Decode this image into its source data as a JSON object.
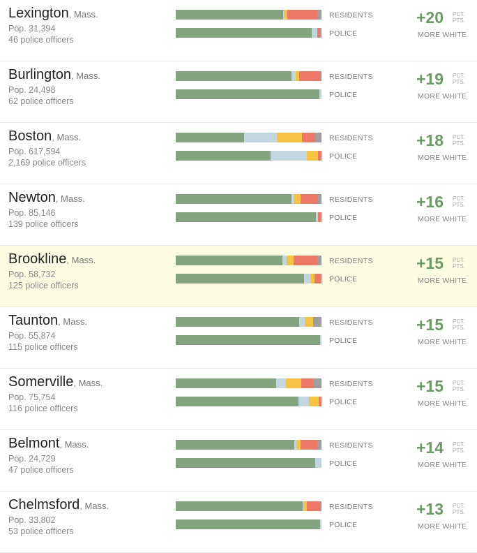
{
  "colors": {
    "white": "#83a47e",
    "asian": "#c2d6e0",
    "hispanic": "#f5c242",
    "black": "#ee7868",
    "other": "#9e9e9e",
    "highlight_bg": "#fdfde3",
    "accent": "#6a9a65"
  },
  "labels": {
    "residents": "RESIDENTS",
    "police": "POLICE",
    "unit_line1": "PCT.",
    "unit_line2": "PTS.",
    "more_white": "MORE WHITE"
  },
  "chart_data": {
    "type": "bar",
    "stacked": true,
    "orientation": "horizontal",
    "segment_order": [
      "white",
      "asian",
      "hispanic",
      "black",
      "other"
    ],
    "rows": [
      {
        "city": "Lexington",
        "state": ", Mass.",
        "pop": "Pop. 31,394",
        "officers": "46 police officers",
        "diff": "+20",
        "highlight": false,
        "residents": [
          73.5,
          0.8,
          2.4,
          20.3,
          3.0
        ],
        "police": [
          93.5,
          3.5,
          0,
          2.2,
          0.8
        ]
      },
      {
        "city": "Burlington",
        "state": ", Mass.",
        "pop": "Pop. 24,498",
        "officers": "62 police officers",
        "diff": "+19",
        "highlight": false,
        "residents": [
          79.5,
          3.0,
          2.0,
          14.8,
          0.7
        ],
        "police": [
          98.5,
          1.5,
          0,
          0,
          0
        ]
      },
      {
        "city": "Boston",
        "state": ", Mass.",
        "pop": "Pop. 617,594",
        "officers": "2,169 police officers",
        "diff": "+18",
        "highlight": false,
        "residents": [
          47.0,
          22.5,
          17.0,
          9.0,
          4.5
        ],
        "police": [
          65.0,
          25.0,
          7.5,
          2.5,
          0
        ]
      },
      {
        "city": "Newton",
        "state": ", Mass.",
        "pop": "Pop. 85,146",
        "officers": "139 police officers",
        "diff": "+16",
        "highlight": false,
        "residents": [
          79.5,
          2.0,
          4.0,
          12.0,
          2.5
        ],
        "police": [
          96.0,
          1.5,
          0,
          2.5,
          0
        ]
      },
      {
        "city": "Brookline",
        "state": ", Mass.",
        "pop": "Pop. 58,732",
        "officers": "125 police officers",
        "diff": "+15",
        "highlight": true,
        "residents": [
          73.0,
          3.0,
          5.0,
          16.0,
          3.0
        ],
        "police": [
          88.0,
          4.5,
          2.5,
          5.0,
          0
        ]
      },
      {
        "city": "Taunton",
        "state": ", Mass.",
        "pop": "Pop. 55,874",
        "officers": "115 police officers",
        "diff": "+15",
        "highlight": false,
        "residents": [
          84.5,
          4.0,
          6.0,
          0,
          5.5
        ],
        "police": [
          99.0,
          1.0,
          0,
          0,
          0
        ]
      },
      {
        "city": "Somerville",
        "state": ", Mass.",
        "pop": "Pop. 75,754",
        "officers": "116 police officers",
        "diff": "+15",
        "highlight": false,
        "residents": [
          69.0,
          6.5,
          10.5,
          8.5,
          5.5
        ],
        "police": [
          84.0,
          7.5,
          6.5,
          2.0,
          0
        ]
      },
      {
        "city": "Belmont",
        "state": ", Mass.",
        "pop": "Pop. 24,729",
        "officers": "47 police officers",
        "diff": "+14",
        "highlight": false,
        "residents": [
          81.5,
          1.5,
          2.5,
          11.5,
          3.0
        ],
        "police": [
          95.5,
          4.5,
          0,
          0,
          0
        ]
      },
      {
        "city": "Chelmsford",
        "state": ", Mass.",
        "pop": "Pop. 33,802",
        "officers": "53 police officers",
        "diff": "+13",
        "highlight": false,
        "residents": [
          87.0,
          0.5,
          2.5,
          9.0,
          1.0
        ],
        "police": [
          99.0,
          1.0,
          0,
          0,
          0
        ]
      }
    ]
  }
}
